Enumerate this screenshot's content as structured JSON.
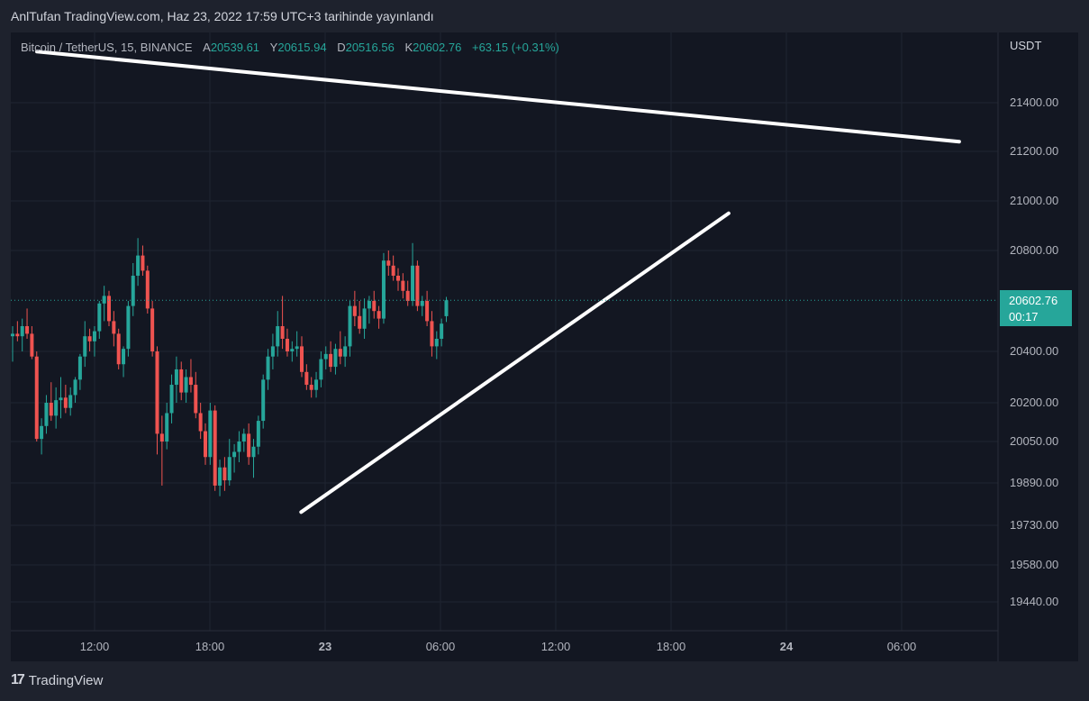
{
  "header": {
    "title": "AnlTufan TradingView.com, Haz 23, 2022 17:59 UTC+3 tarihinde yayınlandı"
  },
  "legend": {
    "symbol": "Bitcoin / TetherUS, 15, BINANCE",
    "open_label": "A",
    "open": "20539.61",
    "high_label": "Y",
    "high": "20615.94",
    "low_label": "D",
    "low": "20516.56",
    "close_label": "K",
    "close": "20602.76",
    "change": "+63.15 (+0.31%)"
  },
  "price_axis": {
    "currency": "USDT",
    "ticks": [
      "21400.00",
      "21200.00",
      "21000.00",
      "20800.00",
      "20400.00",
      "20200.00",
      "20050.00",
      "19890.00",
      "19730.00",
      "19580.00",
      "19440.00"
    ]
  },
  "time_axis": {
    "ticks": [
      "12:00",
      "18:00",
      "23",
      "06:00",
      "12:00",
      "18:00",
      "24",
      "06:00"
    ]
  },
  "last_price": {
    "value": "20602.76",
    "countdown": "00:17"
  },
  "colors": {
    "up": "#26a69a",
    "down": "#ef5350",
    "background": "#131722",
    "grid": "#1f2431",
    "trendline": "#ffffff"
  },
  "footer": {
    "brand": "TradingView",
    "logo_icon": "tradingview-logo-icon"
  },
  "chart_data": {
    "type": "candlestick",
    "symbol": "Bitcoin / TetherUS",
    "interval": "15",
    "exchange": "BINANCE",
    "last_close": 20602.76,
    "xlabel": "",
    "ylabel": "",
    "candles": [
      {
        "o": 20460,
        "h": 20500,
        "l": 20360,
        "c": 20470
      },
      {
        "o": 20470,
        "h": 20520,
        "l": 20440,
        "c": 20460
      },
      {
        "o": 20460,
        "h": 20530,
        "l": 20400,
        "c": 20500
      },
      {
        "o": 20500,
        "h": 20570,
        "l": 20450,
        "c": 20470
      },
      {
        "o": 20470,
        "h": 20500,
        "l": 20370,
        "c": 20380
      },
      {
        "o": 20380,
        "h": 20400,
        "l": 20050,
        "c": 20060
      },
      {
        "o": 20060,
        "h": 20140,
        "l": 20000,
        "c": 20110
      },
      {
        "o": 20110,
        "h": 20230,
        "l": 20080,
        "c": 20200
      },
      {
        "o": 20200,
        "h": 20280,
        "l": 20130,
        "c": 20150
      },
      {
        "o": 20150,
        "h": 20260,
        "l": 20100,
        "c": 20210
      },
      {
        "o": 20210,
        "h": 20300,
        "l": 20140,
        "c": 20220
      },
      {
        "o": 20220,
        "h": 20270,
        "l": 20160,
        "c": 20180
      },
      {
        "o": 20180,
        "h": 20260,
        "l": 20150,
        "c": 20230
      },
      {
        "o": 20230,
        "h": 20300,
        "l": 20200,
        "c": 20290
      },
      {
        "o": 20290,
        "h": 20390,
        "l": 20250,
        "c": 20380
      },
      {
        "o": 20380,
        "h": 20520,
        "l": 20340,
        "c": 20460
      },
      {
        "o": 20460,
        "h": 20490,
        "l": 20400,
        "c": 20440
      },
      {
        "o": 20440,
        "h": 20500,
        "l": 20380,
        "c": 20480
      },
      {
        "o": 20480,
        "h": 20600,
        "l": 20450,
        "c": 20590
      },
      {
        "o": 20590,
        "h": 20660,
        "l": 20520,
        "c": 20620
      },
      {
        "o": 20620,
        "h": 20640,
        "l": 20500,
        "c": 20520
      },
      {
        "o": 20520,
        "h": 20560,
        "l": 20420,
        "c": 20470
      },
      {
        "o": 20470,
        "h": 20490,
        "l": 20330,
        "c": 20350
      },
      {
        "o": 20350,
        "h": 20420,
        "l": 20300,
        "c": 20410
      },
      {
        "o": 20410,
        "h": 20600,
        "l": 20380,
        "c": 20580
      },
      {
        "o": 20580,
        "h": 20750,
        "l": 20540,
        "c": 20700
      },
      {
        "o": 20700,
        "h": 20850,
        "l": 20660,
        "c": 20780
      },
      {
        "o": 20780,
        "h": 20820,
        "l": 20700,
        "c": 20720
      },
      {
        "o": 20720,
        "h": 20740,
        "l": 20550,
        "c": 20570
      },
      {
        "o": 20570,
        "h": 20600,
        "l": 20380,
        "c": 20400
      },
      {
        "o": 20400,
        "h": 20420,
        "l": 20000,
        "c": 20080
      },
      {
        "o": 20080,
        "h": 20150,
        "l": 19880,
        "c": 20050
      },
      {
        "o": 20050,
        "h": 20200,
        "l": 20020,
        "c": 20160
      },
      {
        "o": 20160,
        "h": 20310,
        "l": 20120,
        "c": 20270
      },
      {
        "o": 20270,
        "h": 20380,
        "l": 20200,
        "c": 20330
      },
      {
        "o": 20330,
        "h": 20360,
        "l": 20210,
        "c": 20240
      },
      {
        "o": 20240,
        "h": 20330,
        "l": 20200,
        "c": 20300
      },
      {
        "o": 20300,
        "h": 20370,
        "l": 20240,
        "c": 20270
      },
      {
        "o": 20270,
        "h": 20320,
        "l": 20140,
        "c": 20160
      },
      {
        "o": 20160,
        "h": 20200,
        "l": 20060,
        "c": 20090
      },
      {
        "o": 20090,
        "h": 20120,
        "l": 19960,
        "c": 19990
      },
      {
        "o": 19990,
        "h": 20200,
        "l": 19960,
        "c": 20170
      },
      {
        "o": 20170,
        "h": 20190,
        "l": 19860,
        "c": 19880
      },
      {
        "o": 19880,
        "h": 19980,
        "l": 19840,
        "c": 19950
      },
      {
        "o": 19950,
        "h": 19990,
        "l": 19860,
        "c": 19900
      },
      {
        "o": 19900,
        "h": 20060,
        "l": 19880,
        "c": 19990
      },
      {
        "o": 19990,
        "h": 20040,
        "l": 19930,
        "c": 20010
      },
      {
        "o": 20010,
        "h": 20090,
        "l": 19970,
        "c": 20050
      },
      {
        "o": 20050,
        "h": 20100,
        "l": 20010,
        "c": 20080
      },
      {
        "o": 20080,
        "h": 20120,
        "l": 19960,
        "c": 19990
      },
      {
        "o": 19990,
        "h": 20060,
        "l": 19910,
        "c": 20030
      },
      {
        "o": 20030,
        "h": 20150,
        "l": 20000,
        "c": 20130
      },
      {
        "o": 20130,
        "h": 20310,
        "l": 20100,
        "c": 20290
      },
      {
        "o": 20290,
        "h": 20410,
        "l": 20250,
        "c": 20380
      },
      {
        "o": 20380,
        "h": 20470,
        "l": 20330,
        "c": 20420
      },
      {
        "o": 20420,
        "h": 20560,
        "l": 20380,
        "c": 20500
      },
      {
        "o": 20500,
        "h": 20620,
        "l": 20410,
        "c": 20450
      },
      {
        "o": 20450,
        "h": 20490,
        "l": 20380,
        "c": 20400
      },
      {
        "o": 20400,
        "h": 20440,
        "l": 20360,
        "c": 20410
      },
      {
        "o": 20410,
        "h": 20480,
        "l": 20380,
        "c": 20420
      },
      {
        "o": 20420,
        "h": 20460,
        "l": 20300,
        "c": 20320
      },
      {
        "o": 20320,
        "h": 20350,
        "l": 20250,
        "c": 20270
      },
      {
        "o": 20270,
        "h": 20300,
        "l": 20220,
        "c": 20250
      },
      {
        "o": 20250,
        "h": 20320,
        "l": 20220,
        "c": 20290
      },
      {
        "o": 20290,
        "h": 20400,
        "l": 20260,
        "c": 20370
      },
      {
        "o": 20370,
        "h": 20420,
        "l": 20330,
        "c": 20390
      },
      {
        "o": 20390,
        "h": 20440,
        "l": 20320,
        "c": 20340
      },
      {
        "o": 20340,
        "h": 20430,
        "l": 20310,
        "c": 20410
      },
      {
        "o": 20410,
        "h": 20480,
        "l": 20350,
        "c": 20380
      },
      {
        "o": 20380,
        "h": 20460,
        "l": 20340,
        "c": 20420
      },
      {
        "o": 20420,
        "h": 20600,
        "l": 20380,
        "c": 20580
      },
      {
        "o": 20580,
        "h": 20640,
        "l": 20500,
        "c": 20540
      },
      {
        "o": 20540,
        "h": 20600,
        "l": 20470,
        "c": 20490
      },
      {
        "o": 20490,
        "h": 20610,
        "l": 20450,
        "c": 20570
      },
      {
        "o": 20570,
        "h": 20620,
        "l": 20510,
        "c": 20600
      },
      {
        "o": 20600,
        "h": 20640,
        "l": 20530,
        "c": 20560
      },
      {
        "o": 20560,
        "h": 20580,
        "l": 20490,
        "c": 20530
      },
      {
        "o": 20530,
        "h": 20790,
        "l": 20510,
        "c": 20760
      },
      {
        "o": 20760,
        "h": 20800,
        "l": 20700,
        "c": 20740
      },
      {
        "o": 20740,
        "h": 20780,
        "l": 20680,
        "c": 20700
      },
      {
        "o": 20700,
        "h": 20730,
        "l": 20640,
        "c": 20680
      },
      {
        "o": 20680,
        "h": 20710,
        "l": 20610,
        "c": 20640
      },
      {
        "o": 20640,
        "h": 20680,
        "l": 20580,
        "c": 20600
      },
      {
        "o": 20600,
        "h": 20830,
        "l": 20580,
        "c": 20740
      },
      {
        "o": 20740,
        "h": 20760,
        "l": 20560,
        "c": 20580
      },
      {
        "o": 20580,
        "h": 20620,
        "l": 20540,
        "c": 20600
      },
      {
        "o": 20600,
        "h": 20640,
        "l": 20500,
        "c": 20520
      },
      {
        "o": 20520,
        "h": 20560,
        "l": 20380,
        "c": 20420
      },
      {
        "o": 20420,
        "h": 20480,
        "l": 20370,
        "c": 20450
      },
      {
        "o": 20450,
        "h": 20530,
        "l": 20420,
        "c": 20510
      },
      {
        "o": 20539.61,
        "h": 20615.94,
        "l": 20516.56,
        "c": 20602.76
      }
    ],
    "trendlines": [
      {
        "from": {
          "time": "22 09:00",
          "price": 21610
        },
        "to": {
          "time": "24 09:00",
          "price": 21240
        }
      },
      {
        "from": {
          "time": "22 22:45",
          "price": 19780
        },
        "to": {
          "time": "23 21:00",
          "price": 20950
        }
      }
    ]
  }
}
